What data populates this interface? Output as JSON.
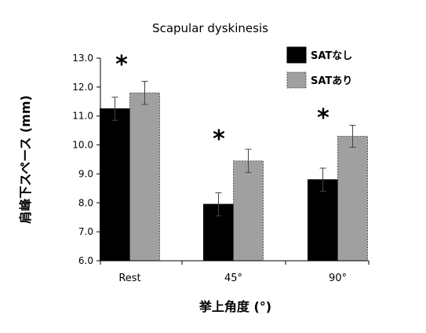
{
  "chart_data": {
    "type": "bar",
    "title": "Scapular dyskinesis",
    "xlabel": "挙上角度 (°)",
    "ylabel": "肩峰下スペース (mm)",
    "ylim": [
      6.0,
      13.0
    ],
    "yticks": [
      "6.0",
      "7.0",
      "8.0",
      "9.0",
      "10.0",
      "11.0",
      "12.0",
      "13.0"
    ],
    "categories": [
      "Rest",
      "45°",
      "90°"
    ],
    "series": [
      {
        "name": "SATなし",
        "color": "#000000",
        "values": [
          11.25,
          7.95,
          8.8
        ],
        "errors": [
          0.4,
          0.4,
          0.4
        ]
      },
      {
        "name": "SATあり",
        "color": "#a0a0a0",
        "values": [
          11.8,
          9.45,
          10.3
        ],
        "errors": [
          0.4,
          0.4,
          0.38
        ]
      }
    ],
    "annotations": [
      "*",
      "*",
      "*"
    ],
    "grid": false,
    "legend": "top-right"
  }
}
